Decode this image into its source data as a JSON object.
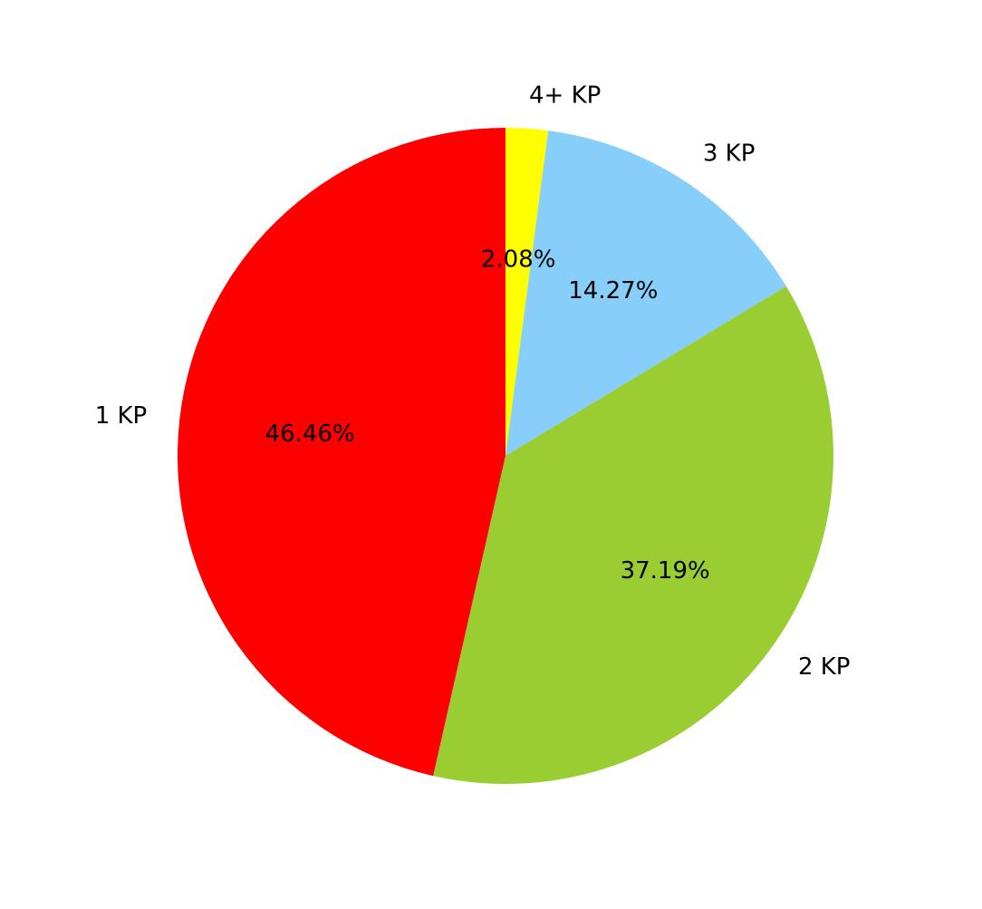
{
  "chart_data": {
    "type": "pie",
    "title": "",
    "start_angle_deg": 90,
    "direction": "clockwise",
    "slices": [
      {
        "label": "4+ KP",
        "value": 2.08,
        "percent_label": "2.08%",
        "color": "#ffff00"
      },
      {
        "label": "3 KP",
        "value": 14.27,
        "percent_label": "14.27%",
        "color": "#87cefa"
      },
      {
        "label": "2 KP",
        "value": 37.19,
        "percent_label": "37.19%",
        "color": "#9acd32"
      },
      {
        "label": "1 KP",
        "value": 46.46,
        "percent_label": "46.46%",
        "color": "#ff0000"
      }
    ]
  }
}
